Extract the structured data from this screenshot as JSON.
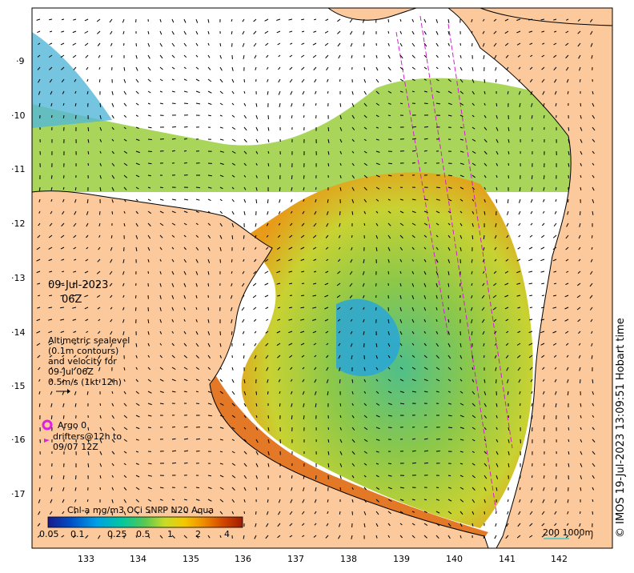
{
  "map": {
    "latitude_labels": [
      "9",
      "10",
      "11",
      "12",
      "13",
      "14",
      "15",
      "16",
      "17"
    ],
    "longitude_labels": [
      "133",
      "134",
      "135",
      "136",
      "137",
      "138",
      "139",
      "140",
      "141",
      "142"
    ],
    "colors": {
      "land": "#fbc99b",
      "no_data": "#ffffff",
      "coast": "#000000",
      "track": "#d21ed2"
    }
  },
  "annotations": {
    "date": "09-Jul-2023",
    "time": "06Z",
    "sealevel_lines": [
      "Altimetric sealevel",
      "(0.1m contours)",
      "and velocity for",
      "09-Jul 06Z",
      "0.5m/s (1kt 12h)"
    ],
    "argo_label": "Argo 0",
    "drifters_lines": [
      "drifters@12h to",
      "09/07 12Z"
    ]
  },
  "colorbar": {
    "title": "Chl-a mg/m3 OCi SNPP N20 Aqua",
    "ticks": [
      "0.05",
      "0.1",
      "0.25",
      "0.5",
      "1",
      "2",
      "4"
    ],
    "colors": [
      "#1a1a8c",
      "#0050c8",
      "#00a0e6",
      "#00c8a0",
      "#5ac850",
      "#c8dc28",
      "#f5c800",
      "#f08c00",
      "#d24600",
      "#a01e00"
    ]
  },
  "scale_bar": {
    "label": "200  1000m"
  },
  "copyright": "© IMOS 19-Jul-2023 13:09:51 Hobart time"
}
